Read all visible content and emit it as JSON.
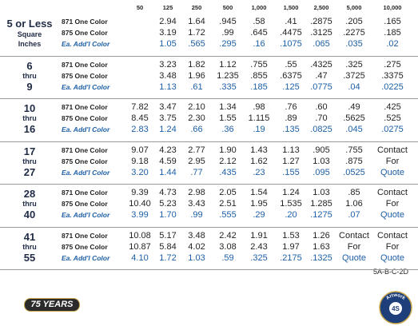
{
  "header": {
    "columns": [
      "50",
      "125",
      "250",
      "500",
      "1,000",
      "1,500",
      "2,500",
      "5,000",
      "10,000"
    ]
  },
  "groups": [
    {
      "label": [
        "5 or Less",
        "Square",
        "Inches"
      ],
      "rows": [
        {
          "label": "871 One Color",
          "cells": [
            null,
            "2.94",
            "1.64",
            ".945",
            ".58",
            ".41",
            ".2875",
            ".205",
            ".165"
          ]
        },
        {
          "label": "875 One Color",
          "cells": [
            null,
            "3.19",
            "1.72",
            ".99",
            ".645",
            ".4475",
            ".3125",
            ".2275",
            ".185"
          ]
        },
        {
          "label": "Ea. Add'l Color",
          "cells": [
            null,
            "1.05",
            ".565",
            ".295",
            ".16",
            ".1075",
            ".065",
            ".035",
            ".02"
          ]
        }
      ]
    },
    {
      "label": [
        "6",
        "thru",
        "9"
      ],
      "rows": [
        {
          "label": "871 One Color",
          "cells": [
            null,
            "3.23",
            "1.82",
            "1.12",
            ".755",
            ".55",
            ".4325",
            ".325",
            ".275"
          ]
        },
        {
          "label": "875 One Color",
          "cells": [
            null,
            "3.48",
            "1.96",
            "1.235",
            ".855",
            ".6375",
            ".47",
            ".3725",
            ".3375"
          ]
        },
        {
          "label": "Ea. Add'l Color",
          "cells": [
            null,
            "1.13",
            ".61",
            ".335",
            ".185",
            ".125",
            ".0775",
            ".04",
            ".0225"
          ]
        }
      ]
    },
    {
      "label": [
        "10",
        "thru",
        "16"
      ],
      "rows": [
        {
          "label": "871 One Color",
          "cells": [
            "7.82",
            "3.47",
            "2.10",
            "1.34",
            ".98",
            ".76",
            ".60",
            ".49",
            ".425"
          ]
        },
        {
          "label": "875 One Color",
          "cells": [
            "8.45",
            "3.75",
            "2.30",
            "1.55",
            "1.115",
            ".89",
            ".70",
            ".5625",
            ".525"
          ]
        },
        {
          "label": "Ea. Add'l Color",
          "cells": [
            "2.83",
            "1.24",
            ".66",
            ".36",
            ".19",
            ".135",
            ".0825",
            ".045",
            ".0275"
          ]
        }
      ]
    },
    {
      "label": [
        "17",
        "thru",
        "27"
      ],
      "rows": [
        {
          "label": "871 One Color",
          "cells": [
            "9.07",
            "4.23",
            "2.77",
            "1.90",
            "1.43",
            "1.13",
            ".905",
            ".755",
            "Contact"
          ]
        },
        {
          "label": "875 One Color",
          "cells": [
            "9.18",
            "4.59",
            "2.95",
            "2.12",
            "1.62",
            "1.27",
            "1.03",
            ".875",
            "For"
          ]
        },
        {
          "label": "Ea. Add'l Color",
          "cells": [
            "3.20",
            "1.44",
            ".77",
            ".435",
            ".23",
            ".155",
            ".095",
            ".0525",
            "Quote"
          ]
        }
      ]
    },
    {
      "label": [
        "28",
        "thru",
        "40"
      ],
      "rows": [
        {
          "label": "871 One Color",
          "cells": [
            "9.39",
            "4.73",
            "2.98",
            "2.05",
            "1.54",
            "1.24",
            "1.03",
            ".85",
            "Contact"
          ]
        },
        {
          "label": "875 One Color",
          "cells": [
            "10.40",
            "5.23",
            "3.43",
            "2.51",
            "1.95",
            "1.535",
            "1.285",
            "1.06",
            "For"
          ]
        },
        {
          "label": "Ea. Add'l Color",
          "cells": [
            "3.99",
            "1.70",
            ".99",
            ".555",
            ".29",
            ".20",
            ".1275",
            ".07",
            "Quote"
          ]
        }
      ]
    },
    {
      "label": [
        "41",
        "thru",
        "55"
      ],
      "rows": [
        {
          "label": "871 One Color",
          "cells": [
            "10.08",
            "5.17",
            "3.48",
            "2.42",
            "1.91",
            "1.53",
            "1.26",
            "Contact",
            "Contact"
          ]
        },
        {
          "label": "875 One Color",
          "cells": [
            "10.87",
            "5.84",
            "4.02",
            "3.08",
            "2.43",
            "1.97",
            "1.63",
            "For",
            "For"
          ]
        },
        {
          "label": "Ea. Add'l Color",
          "cells": [
            "4.10",
            "1.72",
            "1.03",
            ".59",
            ".325",
            ".2175",
            ".1325",
            "Quote",
            "Quote"
          ]
        }
      ]
    }
  ],
  "footer": {
    "code": "5A-B-C-2D",
    "badge": "75 YEARS",
    "seal": {
      "arc": "Artwork",
      "center": "4S"
    }
  }
}
